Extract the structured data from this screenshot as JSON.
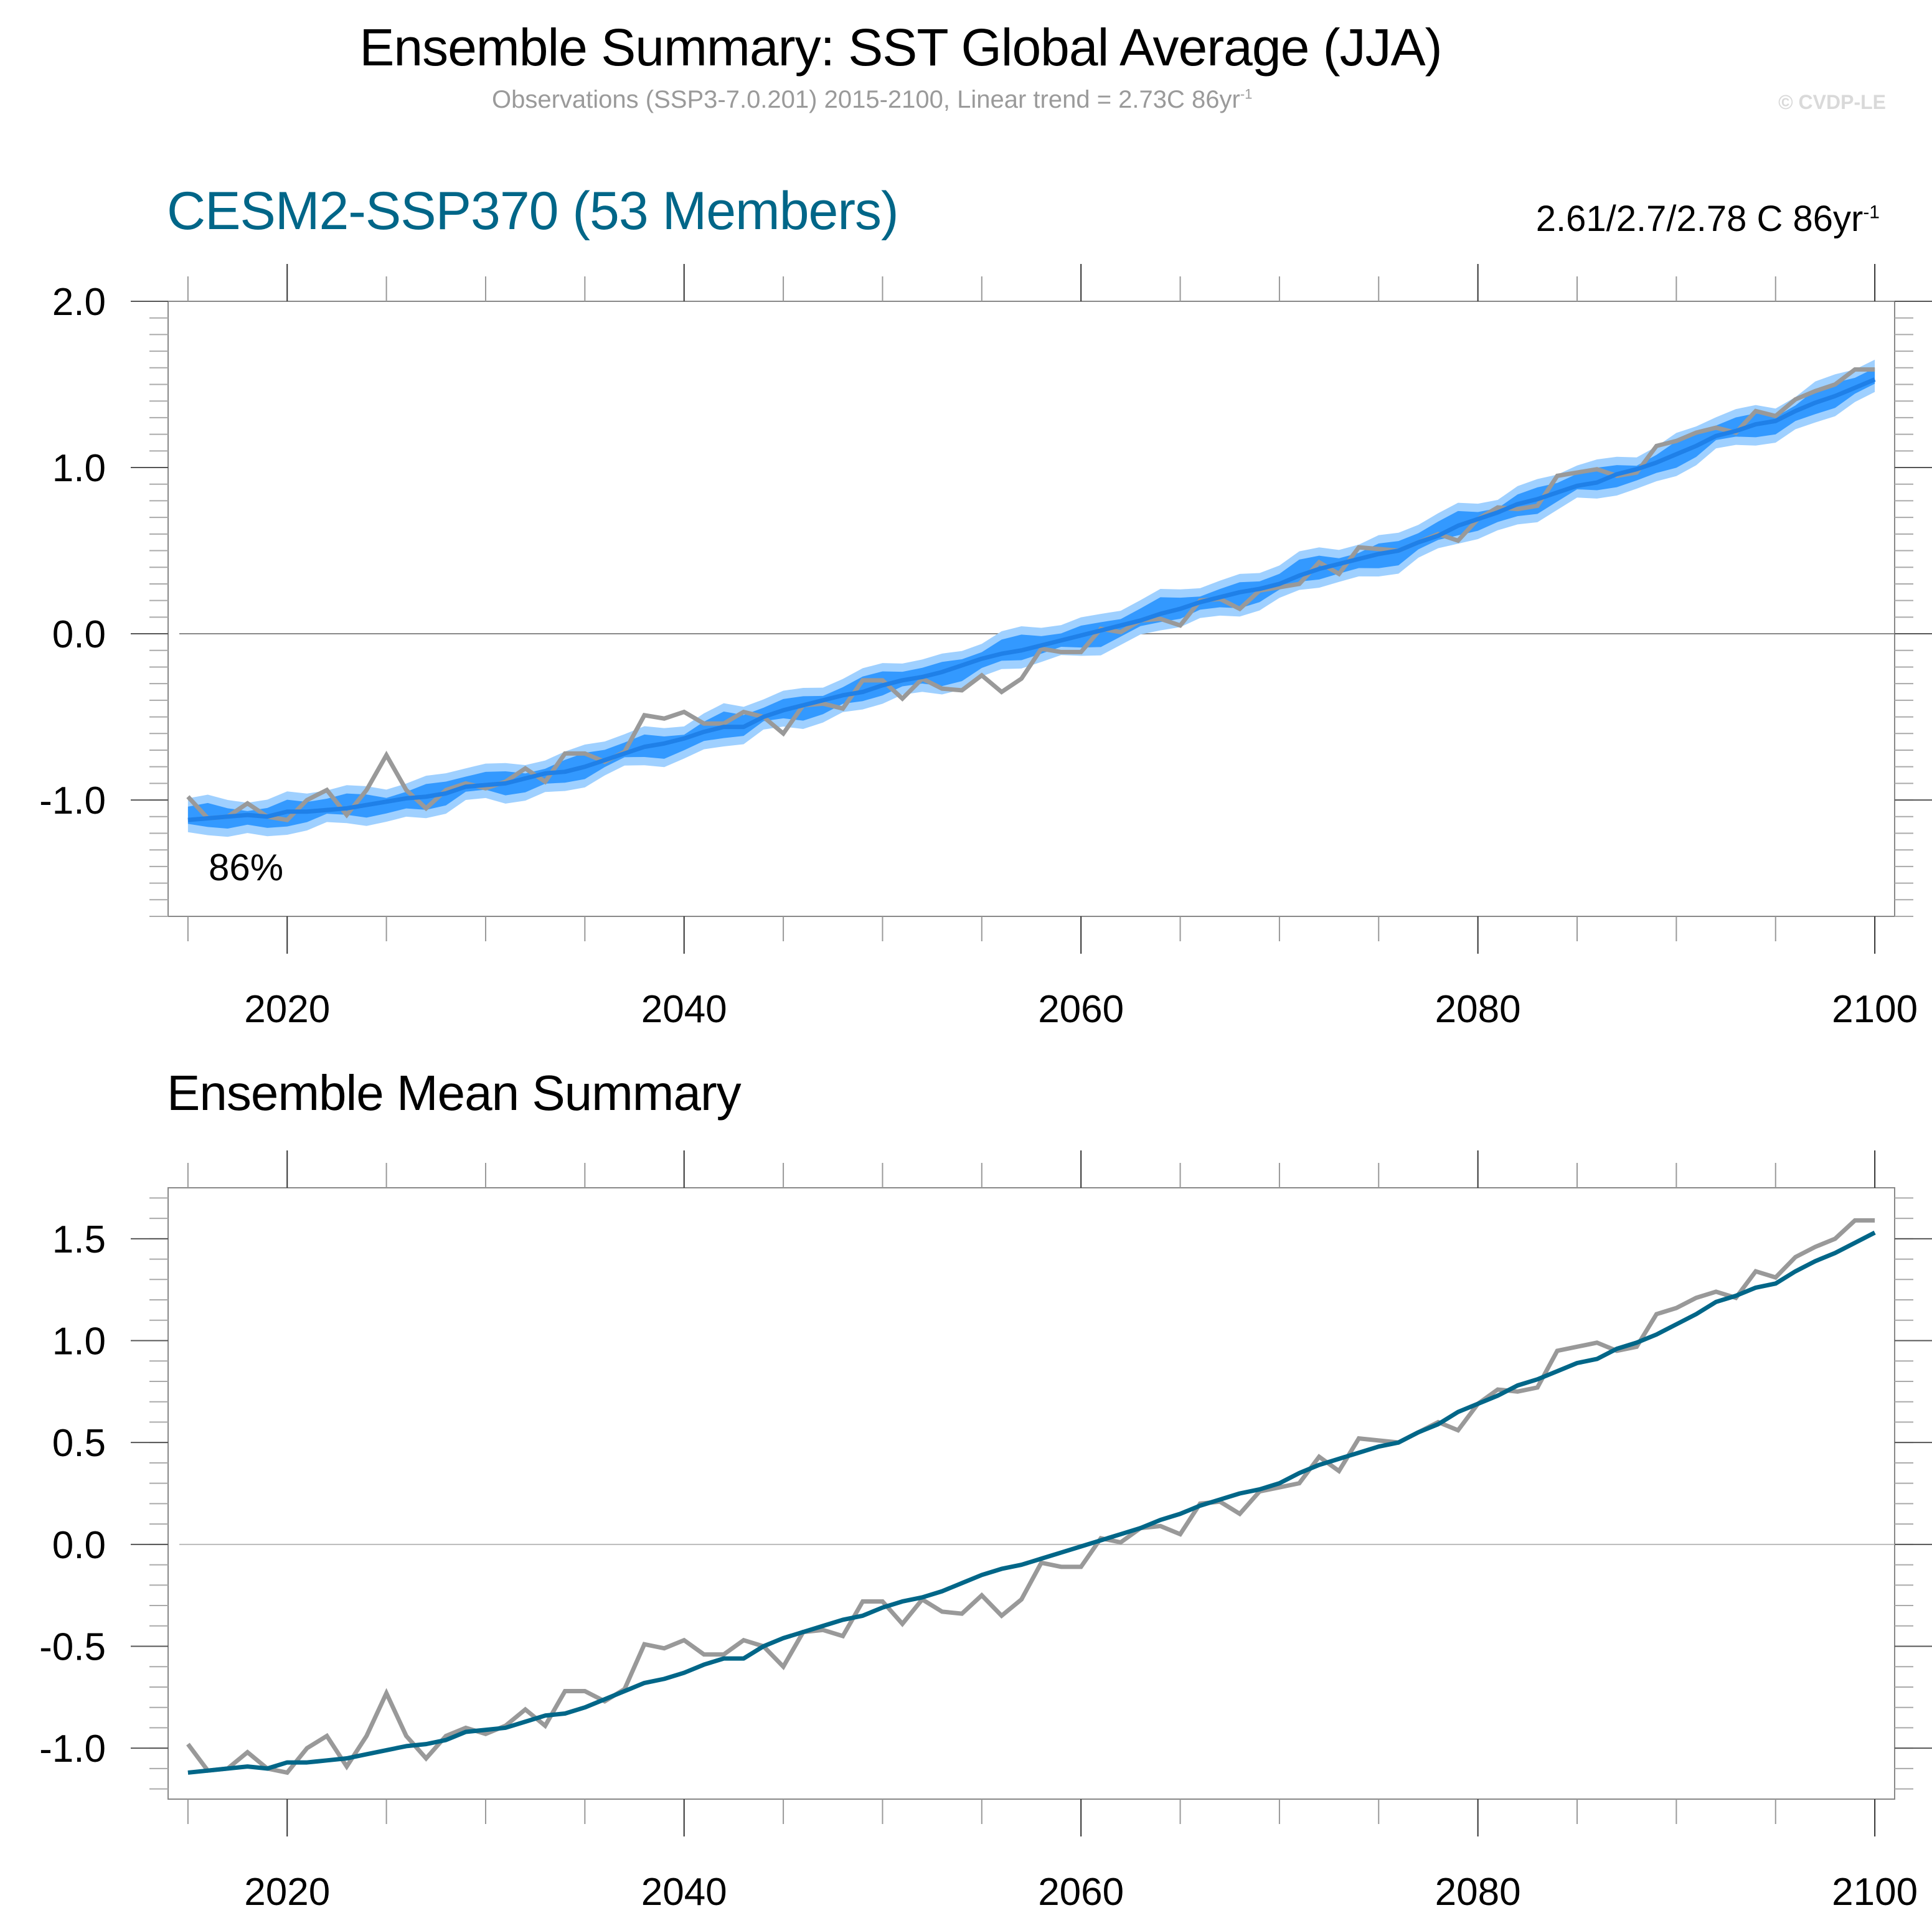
{
  "header": {
    "title": "Ensemble Summary: SST Global Average (JJA)",
    "subtitle": "Observations (SSP3-7.0.201) 2015-2100, Linear trend = 2.73C 86yr",
    "subtitle_sup": "-1",
    "copyright": "© CVDP-LE"
  },
  "colors": {
    "outer_band": "#9fd0ff",
    "inner_band": "#3399ff",
    "ensemble_mean_top": "#1f80e8",
    "ensemble_mean_bottom": "#006688",
    "observations": "#999999",
    "panel1_title": "#006688"
  },
  "chart_data": [
    {
      "type": "area",
      "title": "CESM2-SSP370 (53 Members)",
      "trend_label": "2.61/2.7/2.78 C 86yr",
      "trend_label_sup": "-1",
      "annotation": "86%",
      "xlabel": "",
      "ylabel": "",
      "xlim": [
        2014,
        2101
      ],
      "ylim": [
        -1.7,
        2.0
      ],
      "xticks": [
        2020,
        2040,
        2060,
        2080,
        2100
      ],
      "xtick_labels": [
        "2020",
        "2040",
        "2060",
        "2080",
        "2100"
      ],
      "yticks": [
        -1.0,
        0.0,
        1.0,
        2.0
      ],
      "ytick_labels": [
        "-1.0",
        "0.0",
        "1.0",
        "2.0"
      ],
      "zero_line": true,
      "legend": "none",
      "series_refs": [
        "ensemble_mean",
        "observations"
      ],
      "outer_band_halfwidth": 0.11,
      "inner_band_halfwidth": 0.06
    },
    {
      "type": "line",
      "title": "Ensemble Mean Summary",
      "xlabel": "",
      "ylabel": "",
      "xlim": [
        2014,
        2101
      ],
      "ylim": [
        -1.25,
        1.75
      ],
      "xticks": [
        2020,
        2040,
        2060,
        2080,
        2100
      ],
      "xtick_labels": [
        "2020",
        "2040",
        "2060",
        "2080",
        "2100"
      ],
      "yticks": [
        -1.0,
        -0.5,
        0.0,
        0.5,
        1.0,
        1.5
      ],
      "ytick_labels": [
        "-1.0",
        "-0.5",
        "0.0",
        "0.5",
        "1.0",
        "1.5"
      ],
      "zero_line": true,
      "legend": "none",
      "series_refs": [
        "ensemble_mean",
        "observations"
      ]
    }
  ],
  "series": {
    "years_start": 2015,
    "years_end": 2100,
    "ensemble_mean": [
      -1.12,
      -1.11,
      -1.1,
      -1.09,
      -1.1,
      -1.07,
      -1.07,
      -1.06,
      -1.05,
      -1.03,
      -1.01,
      -0.99,
      -0.98,
      -0.96,
      -0.92,
      -0.91,
      -0.9,
      -0.87,
      -0.84,
      -0.83,
      -0.8,
      -0.76,
      -0.72,
      -0.68,
      -0.66,
      -0.63,
      -0.59,
      -0.56,
      -0.56,
      -0.5,
      -0.46,
      -0.43,
      -0.4,
      -0.37,
      -0.35,
      -0.31,
      -0.28,
      -0.26,
      -0.23,
      -0.19,
      -0.15,
      -0.12,
      -0.1,
      -0.07,
      -0.04,
      -0.01,
      0.02,
      0.05,
      0.08,
      0.12,
      0.15,
      0.19,
      0.22,
      0.25,
      0.27,
      0.3,
      0.35,
      0.39,
      0.42,
      0.45,
      0.48,
      0.5,
      0.55,
      0.59,
      0.65,
      0.69,
      0.73,
      0.78,
      0.81,
      0.85,
      0.89,
      0.91,
      0.96,
      0.99,
      1.03,
      1.08,
      1.13,
      1.19,
      1.22,
      1.26,
      1.28,
      1.34,
      1.39,
      1.43,
      1.48,
      1.53
    ],
    "observations": [
      -0.98,
      -1.11,
      -1.1,
      -1.02,
      -1.1,
      -1.12,
      -1.0,
      -0.94,
      -1.09,
      -0.94,
      -0.73,
      -0.94,
      -1.05,
      -0.94,
      -0.9,
      -0.93,
      -0.89,
      -0.81,
      -0.89,
      -0.72,
      -0.72,
      -0.77,
      -0.71,
      -0.49,
      -0.51,
      -0.47,
      -0.54,
      -0.54,
      -0.47,
      -0.5,
      -0.6,
      -0.43,
      -0.42,
      -0.45,
      -0.28,
      -0.28,
      -0.39,
      -0.27,
      -0.33,
      -0.34,
      -0.25,
      -0.35,
      -0.27,
      -0.09,
      -0.11,
      -0.11,
      0.03,
      0.01,
      0.08,
      0.09,
      0.05,
      0.2,
      0.21,
      0.15,
      0.26,
      0.28,
      0.3,
      0.43,
      0.36,
      0.52,
      0.51,
      0.5,
      0.55,
      0.6,
      0.56,
      0.69,
      0.76,
      0.75,
      0.77,
      0.95,
      0.97,
      0.99,
      0.95,
      0.97,
      1.13,
      1.16,
      1.21,
      1.24,
      1.21,
      1.34,
      1.31,
      1.41,
      1.46,
      1.5,
      1.59,
      1.59
    ]
  }
}
